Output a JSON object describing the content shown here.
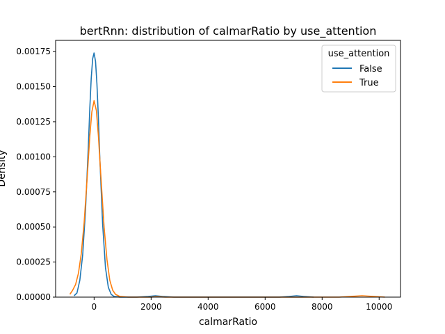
{
  "chart_data": {
    "type": "line",
    "title": "bertRnn: distribution of calmarRatio by use_attention",
    "xlabel": "calmarRatio",
    "ylabel": "Density",
    "xlim": [
      -1350,
      10750
    ],
    "ylim": [
      0,
      0.00183
    ],
    "xticks": [
      0,
      2000,
      4000,
      6000,
      8000,
      10000
    ],
    "yticks": [
      0.0,
      0.00025,
      0.0005,
      0.00075,
      0.001,
      0.00125,
      0.0015,
      0.00175
    ],
    "ytick_labels": [
      "0.00000",
      "0.00025",
      "0.00050",
      "0.00075",
      "0.00100",
      "0.00125",
      "0.00150",
      "0.00175"
    ],
    "grid": false,
    "legend": {
      "title": "use_attention",
      "placement": "top-right"
    },
    "series": [
      {
        "name": "False",
        "color": "#1f77b4",
        "points": [
          [
            -700,
            1e-05
          ],
          [
            -600,
            3e-05
          ],
          [
            -500,
            0.00012
          ],
          [
            -400,
            0.0003
          ],
          [
            -300,
            0.00062
          ],
          [
            -200,
            0.00108
          ],
          [
            -150,
            0.00135
          ],
          [
            -100,
            0.00156
          ],
          [
            -50,
            0.0017
          ],
          [
            0,
            0.00174
          ],
          [
            50,
            0.00168
          ],
          [
            100,
            0.00152
          ],
          [
            150,
            0.00128
          ],
          [
            200,
            0.001
          ],
          [
            300,
            0.00052
          ],
          [
            400,
            0.00021
          ],
          [
            500,
            7e-05
          ],
          [
            600,
            2e-05
          ],
          [
            700,
            5e-06
          ],
          [
            900,
            0.0
          ],
          [
            1500,
            0.0
          ],
          [
            1900,
            5e-06
          ],
          [
            2150,
            1e-05
          ],
          [
            2400,
            5e-06
          ],
          [
            2800,
            0.0
          ],
          [
            6500,
            0.0
          ],
          [
            6850,
            5e-06
          ],
          [
            7100,
            1e-05
          ],
          [
            7350,
            5e-06
          ],
          [
            7700,
            0.0
          ]
        ]
      },
      {
        "name": "True",
        "color": "#ff7f0e",
        "points": [
          [
            -850,
            2e-05
          ],
          [
            -750,
            5e-05
          ],
          [
            -650,
            9e-05
          ],
          [
            -550,
            0.00017
          ],
          [
            -450,
            0.00031
          ],
          [
            -350,
            0.00053
          ],
          [
            -250,
            0.00083
          ],
          [
            -150,
            0.00115
          ],
          [
            -80,
            0.00132
          ],
          [
            0,
            0.0014
          ],
          [
            80,
            0.00133
          ],
          [
            150,
            0.00115
          ],
          [
            250,
            0.00082
          ],
          [
            350,
            0.0005
          ],
          [
            450,
            0.00027
          ],
          [
            550,
            0.00012
          ],
          [
            650,
            5e-05
          ],
          [
            750,
            2e-05
          ],
          [
            900,
            5e-06
          ],
          [
            1200,
            0.0
          ],
          [
            2000,
            0.0
          ],
          [
            2200,
            3e-06
          ],
          [
            2500,
            0.0
          ],
          [
            8600,
            0.0
          ],
          [
            9000,
            5e-06
          ],
          [
            9400,
            1e-05
          ],
          [
            9800,
            5e-06
          ],
          [
            10200,
            0.0
          ]
        ]
      }
    ]
  }
}
